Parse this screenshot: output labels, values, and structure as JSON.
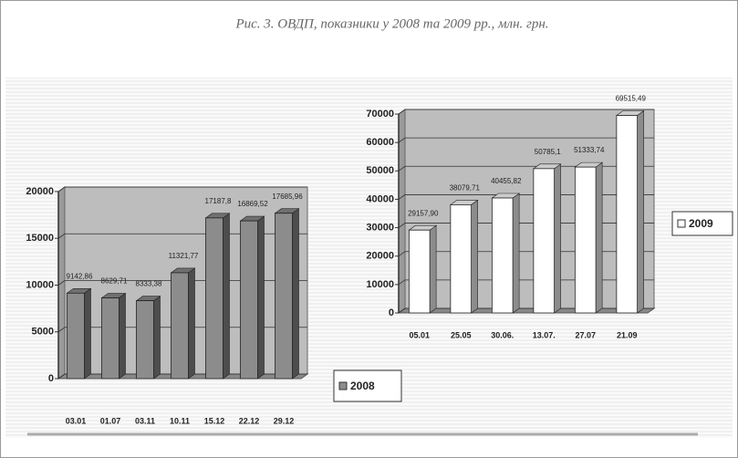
{
  "caption": "Рис. 3. ОВДП, показники у 2008 та 2009 рр., млн. грн.",
  "chart_data": [
    {
      "type": "bar3d",
      "categories": [
        "03.01",
        "01.07",
        "03.11",
        "10.11",
        "15.12",
        "22.12",
        "29.12"
      ],
      "series": [
        {
          "name": "2008",
          "color": "#8c8c8c",
          "values": [
            9142.86,
            8629.71,
            8333.38,
            11321.77,
            17187.8,
            16869.52,
            17685.96
          ],
          "value_labels": [
            "9142,86",
            "8629,71",
            "8333,38",
            "11321,77",
            "17187,8",
            "16869,52",
            "17685,96"
          ]
        }
      ],
      "ylim": [
        0,
        20000
      ],
      "yticks": [
        0,
        5000,
        10000,
        15000,
        20000
      ],
      "grid": true
    },
    {
      "type": "bar3d",
      "categories": [
        "05.01",
        "25.05",
        "30.06.",
        "13.07.",
        "27.07",
        "21.09"
      ],
      "series": [
        {
          "name": "2009",
          "color": "#ffffff",
          "values": [
            29157.9,
            38079.71,
            40455.82,
            50785.1,
            51333.74,
            69515.49
          ],
          "value_labels": [
            "29157,90",
            "38079,71",
            "40455,82",
            "50785,1",
            "51333,74",
            "69515,49"
          ]
        }
      ],
      "ylim": [
        0,
        70000
      ],
      "yticks": [
        0,
        10000,
        20000,
        30000,
        40000,
        50000,
        60000,
        70000
      ],
      "grid": true
    }
  ]
}
